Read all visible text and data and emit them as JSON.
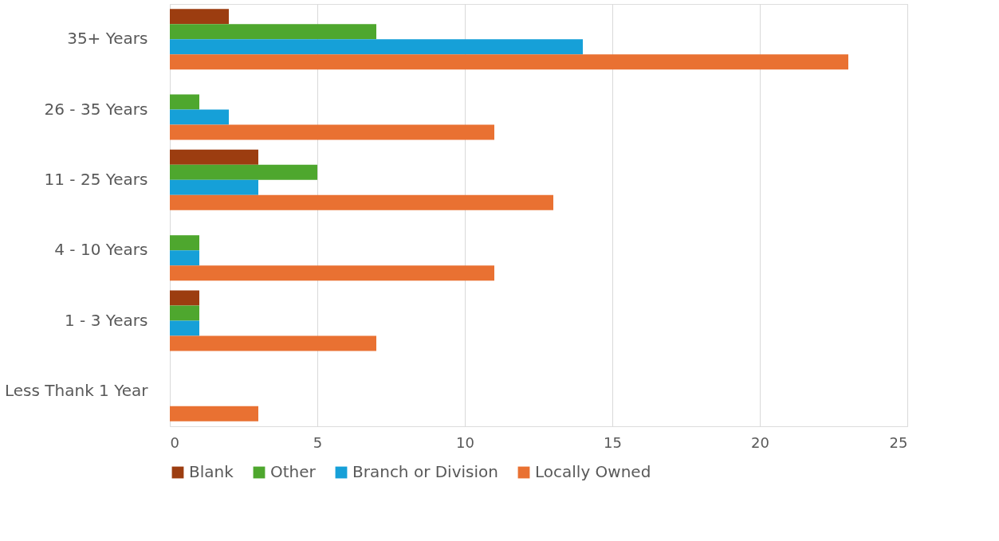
{
  "chart_data": {
    "type": "bar",
    "orientation": "horizontal",
    "categories": [
      "35+ Years",
      "26 - 35 Years",
      "11 - 25 Years",
      "4 - 10 Years",
      "1 - 3 Years",
      "Less Thank 1 Year"
    ],
    "series": [
      {
        "name": "Blank",
        "color": "#9c3d10",
        "values": [
          2,
          0,
          3,
          0,
          1,
          0
        ]
      },
      {
        "name": "Other",
        "color": "#4ea72e",
        "values": [
          7,
          1,
          5,
          1,
          1,
          0
        ]
      },
      {
        "name": "Branch or Division",
        "color": "#16a0d8",
        "values": [
          14,
          2,
          3,
          1,
          1,
          0
        ]
      },
      {
        "name": "Locally Owned",
        "color": "#e97132",
        "values": [
          23,
          11,
          13,
          11,
          7,
          3
        ]
      }
    ],
    "xlim": [
      0,
      25
    ],
    "xticks": [
      0,
      5,
      10,
      15,
      20,
      25
    ],
    "grid": "x",
    "legend": "bottom"
  }
}
